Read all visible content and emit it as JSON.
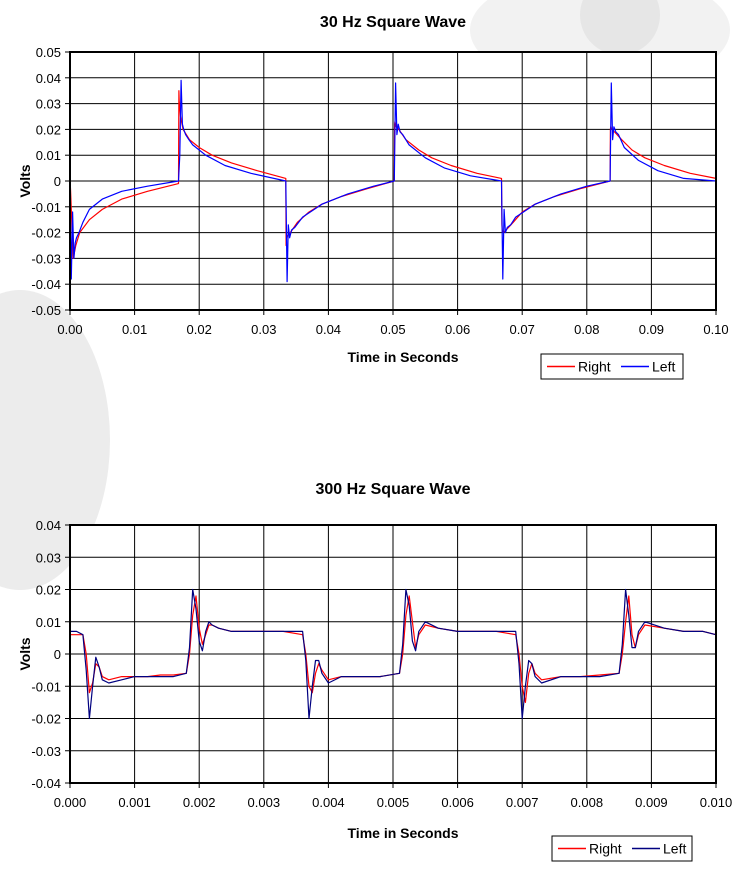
{
  "chart_data": [
    {
      "type": "line",
      "title": "30 Hz Square Wave",
      "xlabel": "Time in Seconds",
      "ylabel": "Volts",
      "xlim": [
        0,
        0.1
      ],
      "ylim": [
        -0.05,
        0.05
      ],
      "xticks": [
        "0.00",
        "0.01",
        "0.02",
        "0.03",
        "0.04",
        "0.05",
        "0.06",
        "0.07",
        "0.08",
        "0.09",
        "0.10"
      ],
      "yticks": [
        "0.05",
        "0.04",
        "0.03",
        "0.02",
        "0.01",
        "0",
        "-0.01",
        "-0.02",
        "-0.03",
        "-0.04",
        "-0.05"
      ],
      "grid": true,
      "legend_position": "bottom-right",
      "series": [
        {
          "name": "Right",
          "color": "#ff0000",
          "x": [
            0,
            0.0001,
            0.0005,
            0.0009,
            0.0015,
            0.003,
            0.005,
            0.008,
            0.012,
            0.0168,
            0.01685,
            0.0169,
            0.0171,
            0.0175,
            0.0185,
            0.02,
            0.022,
            0.025,
            0.029,
            0.0334,
            0.03345,
            0.0335,
            0.0337,
            0.0341,
            0.0352,
            0.037,
            0.039,
            0.042,
            0.046,
            0.0502,
            0.05025,
            0.0503,
            0.0505,
            0.0509,
            0.052,
            0.054,
            0.056,
            0.059,
            0.063,
            0.0668,
            0.06685,
            0.0669,
            0.0671,
            0.0675,
            0.0686,
            0.07,
            0.072,
            0.075,
            0.079,
            0.0836,
            0.08365,
            0.0837,
            0.0839,
            0.0843,
            0.0854,
            0.087,
            0.089,
            0.092,
            0.096,
            0.1
          ],
          "values": [
            0.001,
            -0.004,
            -0.03,
            -0.025,
            -0.02,
            -0.015,
            -0.011,
            -0.007,
            -0.004,
            -0.001,
            0.035,
            0.031,
            0.025,
            0.02,
            0.016,
            0.013,
            0.01,
            0.007,
            0.004,
            0.001,
            -0.025,
            -0.022,
            -0.021,
            -0.02,
            -0.016,
            -0.012,
            -0.009,
            -0.006,
            -0.003,
            0.0,
            0.022,
            0.023,
            0.021,
            0.02,
            0.016,
            0.012,
            0.009,
            0.006,
            0.003,
            0.001,
            -0.017,
            -0.019,
            -0.02,
            -0.019,
            -0.016,
            -0.012,
            -0.009,
            -0.006,
            -0.003,
            0.0,
            0.02,
            0.021,
            0.02,
            0.019,
            0.016,
            0.012,
            0.009,
            0.006,
            0.003,
            0.001
          ]
        },
        {
          "name": "Left",
          "color": "#0000ff",
          "x": [
            0,
            0.0002,
            0.0004,
            0.0006,
            0.0008,
            0.001,
            0.0014,
            0.002,
            0.003,
            0.005,
            0.008,
            0.012,
            0.0168,
            0.017,
            0.0172,
            0.0174,
            0.0176,
            0.0179,
            0.0184,
            0.019,
            0.021,
            0.024,
            0.028,
            0.0334,
            0.0336,
            0.0338,
            0.034,
            0.0343,
            0.0348,
            0.036,
            0.039,
            0.043,
            0.047,
            0.0502,
            0.0504,
            0.0506,
            0.0508,
            0.0511,
            0.0515,
            0.0525,
            0.055,
            0.058,
            0.062,
            0.0668,
            0.067,
            0.0672,
            0.0674,
            0.0677,
            0.0682,
            0.069,
            0.072,
            0.076,
            0.08,
            0.0836,
            0.0838,
            0.084,
            0.0842,
            0.0845,
            0.0849,
            0.0858,
            0.088,
            0.091,
            0.095,
            0.1
          ],
          "values": [
            -0.001,
            -0.038,
            -0.012,
            -0.03,
            -0.024,
            -0.022,
            -0.02,
            -0.016,
            -0.011,
            -0.007,
            -0.004,
            -0.002,
            0.0,
            0.01,
            0.039,
            0.022,
            0.02,
            0.018,
            0.016,
            0.014,
            0.01,
            0.006,
            0.003,
            0.0,
            -0.039,
            -0.017,
            -0.022,
            -0.019,
            -0.018,
            -0.014,
            -0.009,
            -0.005,
            -0.002,
            0.0,
            0.038,
            0.018,
            0.022,
            0.019,
            0.018,
            0.014,
            0.009,
            0.005,
            0.002,
            0.0,
            -0.038,
            -0.011,
            -0.02,
            -0.018,
            -0.017,
            -0.014,
            -0.009,
            -0.005,
            -0.002,
            0.0,
            0.038,
            0.016,
            0.021,
            0.019,
            0.018,
            0.013,
            0.008,
            0.004,
            0.001,
            0.0
          ]
        }
      ]
    },
    {
      "type": "line",
      "title": "300 Hz Square Wave",
      "xlabel": "Time in Seconds",
      "ylabel": "Volts",
      "xlim": [
        0,
        0.01
      ],
      "ylim": [
        -0.04,
        0.04
      ],
      "xticks": [
        "0.000",
        "0.001",
        "0.002",
        "0.003",
        "0.004",
        "0.005",
        "0.006",
        "0.007",
        "0.008",
        "0.009",
        "0.010"
      ],
      "yticks": [
        "0.04",
        "0.03",
        "0.02",
        "0.01",
        "0",
        "-0.01",
        "-0.02",
        "-0.03",
        "-0.04"
      ],
      "grid": true,
      "legend_position": "bottom-right",
      "series": [
        {
          "name": "Right",
          "color": "#ff0000",
          "x": [
            0,
            0.0001,
            0.0002,
            0.00025,
            0.0003,
            0.00035,
            0.0004,
            0.00045,
            0.0005,
            0.0006,
            0.0008,
            0.001,
            0.0012,
            0.0014,
            0.0016,
            0.0018,
            0.00185,
            0.0019,
            0.00195,
            0.002,
            0.00205,
            0.0021,
            0.00215,
            0.0022,
            0.0023,
            0.0025,
            0.0027,
            0.003,
            0.0033,
            0.0036,
            0.00365,
            0.0037,
            0.00375,
            0.0038,
            0.00385,
            0.0039,
            0.004,
            0.0042,
            0.0045,
            0.0048,
            0.0051,
            0.00515,
            0.0052,
            0.00525,
            0.0053,
            0.00535,
            0.0054,
            0.0055,
            0.0057,
            0.006,
            0.0063,
            0.0066,
            0.0069,
            0.00695,
            0.007,
            0.00705,
            0.0071,
            0.00715,
            0.0072,
            0.0073,
            0.0076,
            0.0079,
            0.0082,
            0.0085,
            0.00855,
            0.0086,
            0.00865,
            0.0087,
            0.00875,
            0.0088,
            0.0089,
            0.0092,
            0.0095,
            0.0098,
            0.01
          ],
          "values": [
            0.006,
            0.006,
            0.006,
            0.0,
            -0.012,
            -0.009,
            -0.003,
            -0.004,
            -0.007,
            -0.008,
            -0.007,
            -0.007,
            -0.007,
            -0.0065,
            -0.0065,
            -0.006,
            0.0,
            0.012,
            0.018,
            0.008,
            0.003,
            0.006,
            0.009,
            0.009,
            0.008,
            0.007,
            0.007,
            0.007,
            0.007,
            0.006,
            0.0,
            -0.01,
            -0.012,
            -0.006,
            -0.003,
            -0.005,
            -0.008,
            -0.007,
            -0.007,
            -0.007,
            -0.006,
            0.0,
            0.012,
            0.018,
            0.01,
            0.002,
            0.006,
            0.009,
            0.008,
            0.007,
            0.007,
            0.007,
            0.006,
            0.0,
            -0.01,
            -0.015,
            -0.006,
            -0.003,
            -0.006,
            -0.008,
            -0.007,
            -0.007,
            -0.0065,
            -0.006,
            0.0,
            0.01,
            0.018,
            0.006,
            0.002,
            0.006,
            0.009,
            0.008,
            0.007,
            0.007,
            0.006
          ]
        },
        {
          "name": "Left",
          "color": "#000080",
          "x": [
            0,
            0.0001,
            0.0002,
            0.00025,
            0.0003,
            0.00035,
            0.0004,
            0.00045,
            0.0005,
            0.0006,
            0.0008,
            0.001,
            0.0012,
            0.0014,
            0.0016,
            0.0018,
            0.00185,
            0.0019,
            0.00195,
            0.002,
            0.00205,
            0.0021,
            0.00215,
            0.0022,
            0.0023,
            0.0025,
            0.0027,
            0.003,
            0.0033,
            0.0036,
            0.00365,
            0.0037,
            0.00375,
            0.0038,
            0.00385,
            0.0039,
            0.004,
            0.0042,
            0.0045,
            0.0048,
            0.0051,
            0.00515,
            0.0052,
            0.00525,
            0.0053,
            0.00535,
            0.0054,
            0.0055,
            0.0057,
            0.006,
            0.0063,
            0.0066,
            0.0069,
            0.00695,
            0.007,
            0.00705,
            0.0071,
            0.00715,
            0.0072,
            0.0073,
            0.0076,
            0.0079,
            0.0082,
            0.0085,
            0.00855,
            0.0086,
            0.00865,
            0.0087,
            0.00875,
            0.0088,
            0.0089,
            0.0092,
            0.0095,
            0.0098,
            0.01
          ],
          "values": [
            0.007,
            0.007,
            0.006,
            -0.005,
            -0.02,
            -0.01,
            -0.001,
            -0.004,
            -0.008,
            -0.009,
            -0.008,
            -0.007,
            -0.007,
            -0.007,
            -0.007,
            -0.006,
            0.002,
            0.02,
            0.014,
            0.004,
            0.001,
            0.007,
            0.01,
            0.009,
            0.008,
            0.007,
            0.007,
            0.007,
            0.007,
            0.007,
            -0.002,
            -0.02,
            -0.01,
            -0.002,
            -0.002,
            -0.006,
            -0.009,
            -0.007,
            -0.007,
            -0.007,
            -0.006,
            0.003,
            0.02,
            0.015,
            0.004,
            0.001,
            0.007,
            0.01,
            0.008,
            0.007,
            0.007,
            0.007,
            0.007,
            -0.003,
            -0.02,
            -0.01,
            -0.002,
            -0.003,
            -0.007,
            -0.009,
            -0.007,
            -0.007,
            -0.007,
            -0.006,
            0.003,
            0.02,
            0.012,
            0.002,
            0.002,
            0.007,
            0.01,
            0.008,
            0.007,
            0.007,
            0.006
          ]
        }
      ]
    }
  ]
}
